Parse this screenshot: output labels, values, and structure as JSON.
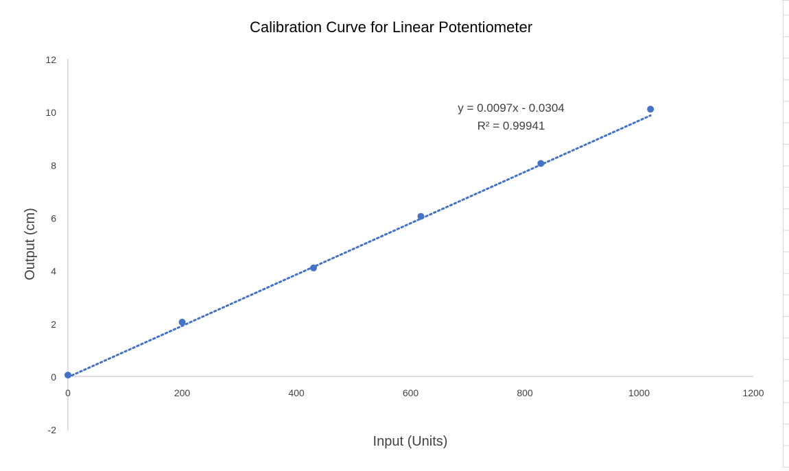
{
  "chart_data": {
    "type": "scatter",
    "title": "Calibration Curve for Linear Potentiometer",
    "xlabel": "Input (Units)",
    "ylabel": "Output (cm)",
    "xlim": [
      0,
      1200
    ],
    "ylim": [
      -2,
      12
    ],
    "x_ticks": [
      0,
      200,
      400,
      600,
      800,
      1000,
      1200
    ],
    "y_ticks": [
      -2,
      0,
      2,
      4,
      6,
      8,
      10,
      12
    ],
    "series": [
      {
        "x": [
          0,
          200,
          430,
          618,
          828,
          1020
        ],
        "y": [
          0.05,
          2.05,
          4.1,
          6.05,
          8.05,
          10.1
        ],
        "color": "#4472C4"
      }
    ],
    "trendline": {
      "type": "linear",
      "slope": 0.0097,
      "intercept": -0.0304,
      "x_range": [
        0,
        1020
      ],
      "style": "dotted",
      "color": "#4472C4",
      "equation": "y = 0.0097x - 0.0304",
      "r_squared": "R² = 0.99941"
    },
    "grid": false,
    "legend": "none"
  }
}
